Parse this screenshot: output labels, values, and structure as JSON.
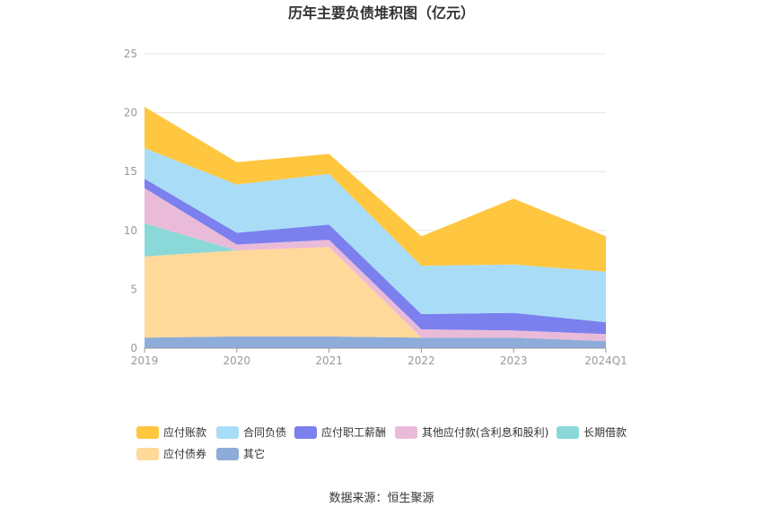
{
  "chart_data": {
    "type": "area",
    "stacked": true,
    "title": "历年主要负债堆积图（亿元）",
    "categories": [
      "2019",
      "2020",
      "2021",
      "2022",
      "2023",
      "2024Q1"
    ],
    "yticks": [
      "0",
      "5",
      "10",
      "15",
      "20",
      "25"
    ],
    "ylim": [
      0,
      25
    ],
    "grid": true,
    "legend_position": "bottom",
    "series": [
      {
        "name": "其它",
        "color": "#8eacd9",
        "values": [
          0.9,
          1.0,
          1.0,
          0.9,
          0.9,
          0.6
        ]
      },
      {
        "name": "应付债券",
        "color": "#ffd99a",
        "values": [
          6.9,
          7.3,
          7.6,
          0.0,
          0.0,
          0.0
        ]
      },
      {
        "name": "长期借款",
        "color": "#8ad8d8",
        "values": [
          2.8,
          0.0,
          0.0,
          0.0,
          0.0,
          0.0
        ]
      },
      {
        "name": "其他应付款(含利息和股利)",
        "color": "#eabbd8",
        "values": [
          3.0,
          0.5,
          0.6,
          0.7,
          0.6,
          0.6
        ]
      },
      {
        "name": "应付职工薪酬",
        "color": "#7b80ee",
        "values": [
          0.8,
          1.0,
          1.3,
          1.3,
          1.5,
          1.0
        ]
      },
      {
        "name": "合同负债",
        "color": "#a9ddf7",
        "values": [
          2.6,
          4.1,
          4.3,
          4.1,
          4.1,
          4.3
        ]
      },
      {
        "name": "应付账款",
        "color": "#ffc63f",
        "values": [
          3.5,
          1.9,
          1.7,
          2.5,
          5.6,
          3.0
        ]
      }
    ],
    "legend": [
      {
        "name": "应付账款",
        "color": "#ffc63f"
      },
      {
        "name": "合同负债",
        "color": "#a9ddf7"
      },
      {
        "name": "应付职工薪酬",
        "color": "#7b80ee"
      },
      {
        "name": "其他应付款(含利息和股利)",
        "color": "#eabbd8"
      },
      {
        "name": "长期借款",
        "color": "#8ad8d8"
      },
      {
        "name": "应付债券",
        "color": "#ffd99a"
      },
      {
        "name": "其它",
        "color": "#8eacd9"
      }
    ]
  },
  "source": "数据来源：恒生聚源"
}
